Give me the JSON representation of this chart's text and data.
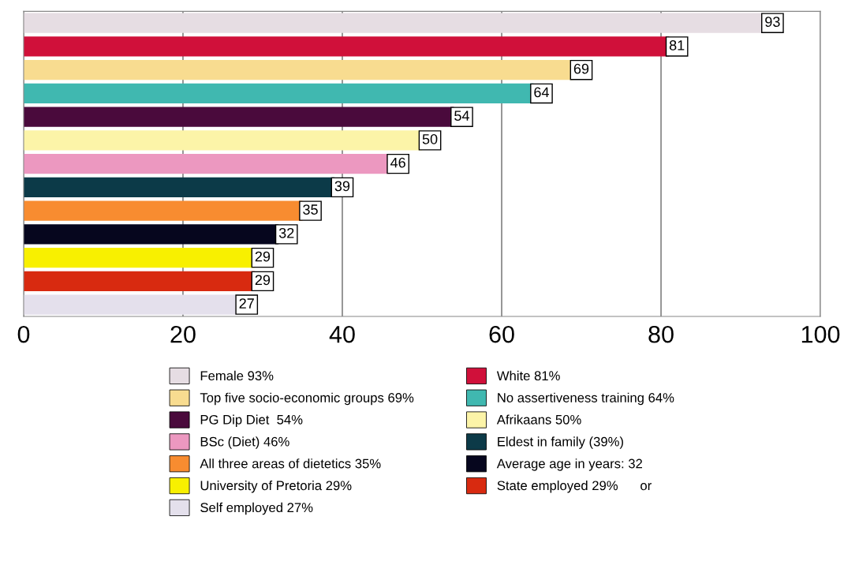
{
  "chart_data": {
    "type": "bar",
    "orientation": "horizontal",
    "categories": [
      null,
      null,
      null,
      null,
      null,
      null,
      null,
      null,
      null,
      null,
      null,
      null,
      null
    ],
    "series": [
      {
        "name": "Female 93%",
        "color": "#e6dde3",
        "values": [
          93,
          null,
          null,
          null,
          null,
          null,
          null,
          null,
          null,
          null,
          null,
          null,
          null
        ]
      },
      {
        "name": "White 81%",
        "color": "#d0103a",
        "values": [
          null,
          81,
          null,
          null,
          null,
          null,
          null,
          null,
          null,
          null,
          null,
          null,
          null
        ]
      },
      {
        "name": "Top five socio-economic groups 69%",
        "color": "#f8dc90",
        "values": [
          null,
          null,
          69,
          null,
          null,
          null,
          null,
          null,
          null,
          null,
          null,
          null,
          null
        ]
      },
      {
        "name": "No assertiveness training 64%",
        "color": "#40b8b0",
        "values": [
          null,
          null,
          null,
          64,
          null,
          null,
          null,
          null,
          null,
          null,
          null,
          null,
          null
        ]
      },
      {
        "name": "PG Dip Diet  54%",
        "color": "#4a0a3c",
        "values": [
          null,
          null,
          null,
          null,
          54,
          null,
          null,
          null,
          null,
          null,
          null,
          null,
          null
        ]
      },
      {
        "name": "Afrikaans 50%",
        "color": "#fcf4a8",
        "values": [
          null,
          null,
          null,
          null,
          null,
          50,
          null,
          null,
          null,
          null,
          null,
          null,
          null
        ]
      },
      {
        "name": "BSc (Diet) 46%",
        "color": "#ec98c0",
        "values": [
          null,
          null,
          null,
          null,
          null,
          null,
          46,
          null,
          null,
          null,
          null,
          null,
          null
        ]
      },
      {
        "name": "Eldest in family (39%)",
        "color": "#0c3a48",
        "values": [
          null,
          null,
          null,
          null,
          null,
          null,
          null,
          39,
          null,
          null,
          null,
          null,
          null
        ]
      },
      {
        "name": "All three areas of dietetics 35%",
        "color": "#f88c30",
        "values": [
          null,
          null,
          null,
          null,
          null,
          null,
          null,
          null,
          35,
          null,
          null,
          null,
          null
        ]
      },
      {
        "name": "Average age in years: 32",
        "color": "#06061e",
        "values": [
          null,
          null,
          null,
          null,
          null,
          null,
          null,
          null,
          null,
          32,
          null,
          null,
          null
        ]
      },
      {
        "name": "University of Pretoria 29%",
        "color": "#f8f000",
        "values": [
          null,
          null,
          null,
          null,
          null,
          null,
          null,
          null,
          null,
          null,
          29,
          null,
          null
        ]
      },
      {
        "name": "State employed 29%      or",
        "color": "#d82a10",
        "values": [
          null,
          null,
          null,
          null,
          null,
          null,
          null,
          null,
          null,
          null,
          null,
          29,
          null
        ]
      },
      {
        "name": "Self employed 27%",
        "color": "#e4e0ec",
        "values": [
          null,
          null,
          null,
          null,
          null,
          null,
          null,
          null,
          null,
          null,
          null,
          null,
          27
        ]
      }
    ],
    "xlim": [
      0,
      100
    ],
    "xticks": [
      0,
      20,
      40,
      60,
      80,
      100
    ],
    "grid": "x",
    "data_labels": true,
    "legend": "bottom"
  }
}
